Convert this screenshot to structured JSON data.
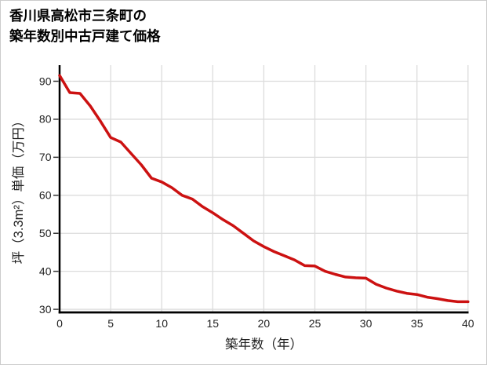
{
  "page": {
    "background": "#ffffff",
    "border_color": "#cccccc"
  },
  "header": {
    "title": "香川県高松市三条町の\n築年数別中古戸建て価格"
  },
  "chart_data": {
    "type": "line",
    "title": "香川県高松市三条町の築年数別中古戸建て価格",
    "xlabel": "築年数（年）",
    "ylabel": "坪（3.3m²）単価（万円）",
    "x": [
      0,
      1,
      2,
      3,
      4,
      5,
      6,
      7,
      8,
      9,
      10,
      11,
      12,
      13,
      14,
      15,
      16,
      17,
      18,
      19,
      20,
      21,
      22,
      23,
      24,
      25,
      26,
      27,
      28,
      29,
      30,
      31,
      32,
      33,
      34,
      35,
      36,
      37,
      38,
      39,
      40
    ],
    "values": [
      91.5,
      87,
      86.8,
      83.5,
      79.5,
      75.2,
      74,
      71,
      68,
      64.5,
      63.5,
      62,
      60,
      59,
      57,
      55.4,
      53.6,
      52,
      50,
      48,
      46.5,
      45.2,
      44.1,
      43,
      41.5,
      41.4,
      40,
      39.2,
      38.5,
      38.3,
      38.2,
      36.6,
      35.6,
      34.8,
      34.2,
      33.9,
      33.2,
      32.8,
      32.3,
      32,
      32
    ],
    "xlim": [
      0,
      40
    ],
    "ylim": [
      30,
      94
    ],
    "xticks": [
      0,
      5,
      10,
      15,
      20,
      25,
      30,
      35,
      40
    ],
    "yticks": [
      30,
      40,
      50,
      60,
      70,
      80,
      90
    ],
    "grid": true,
    "legend": "none",
    "line_color": "#cc1111",
    "line_width": 3.5,
    "axis_color": "#000000",
    "grid_color": "#dcdcdc",
    "tick_color": "#333333",
    "tick_label_color": "#222222",
    "axis_title_color": "#222222"
  }
}
